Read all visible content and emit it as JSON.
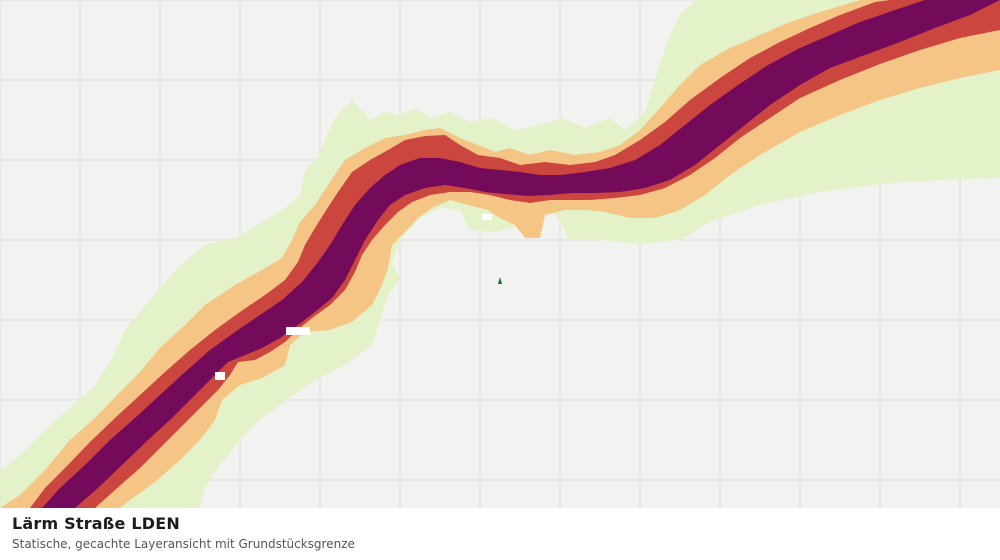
{
  "map": {
    "layer_classes": [
      {
        "name": "zone-outer",
        "color": "#e3f2c8"
      },
      {
        "name": "zone-mid",
        "color": "#f4c585"
      },
      {
        "name": "zone-high",
        "color": "#cc4640"
      },
      {
        "name": "zone-core",
        "color": "#730a5a"
      }
    ],
    "background_color": "#f2f3f1",
    "grid_color": "#dcdedb",
    "boundary_marker_color": "#1f6b2e"
  },
  "caption": {
    "title": "Lärm Straße LDEN",
    "subtitle": "Statische, gecachte Layeransicht mit Grundstücksgrenze"
  }
}
